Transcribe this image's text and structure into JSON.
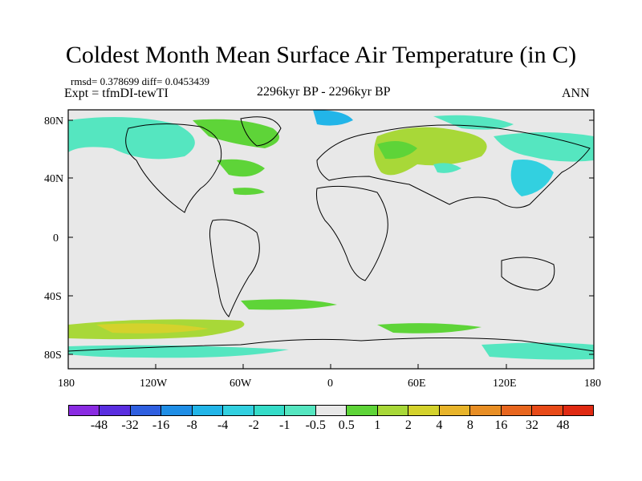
{
  "title": "Coldest Month Mean Surface Air Temperature (in C)",
  "stats": "rmsd= 0.378699 diff= 0.0453439",
  "experiment": "Expt = tfmDI-tewTI",
  "period": "2296kyr BP - 2296kyr BP",
  "season": "ANN",
  "axes": {
    "y_ticks": [
      "80N",
      "40N",
      "0",
      "40S",
      "80S"
    ],
    "x_ticks": [
      "180",
      "120W",
      "60W",
      "0",
      "60E",
      "120E",
      "180"
    ]
  },
  "colorbar": {
    "labels": [
      "-48",
      "-32",
      "-16",
      "-8",
      "-4",
      "-2",
      "-1",
      "-0.5",
      "0.5",
      "1",
      "2",
      "4",
      "8",
      "16",
      "32",
      "48"
    ],
    "colors": [
      "#8a2be2",
      "#5a2ee0",
      "#2f5fe0",
      "#1f8ee6",
      "#22b5e8",
      "#32d0e0",
      "#35dcc8",
      "#55e6c0",
      "#e8e8e8",
      "#5ed438",
      "#a8d838",
      "#d4d22c",
      "#e8b42a",
      "#e88e24",
      "#e8661e",
      "#e84a18",
      "#e02a12"
    ]
  }
}
